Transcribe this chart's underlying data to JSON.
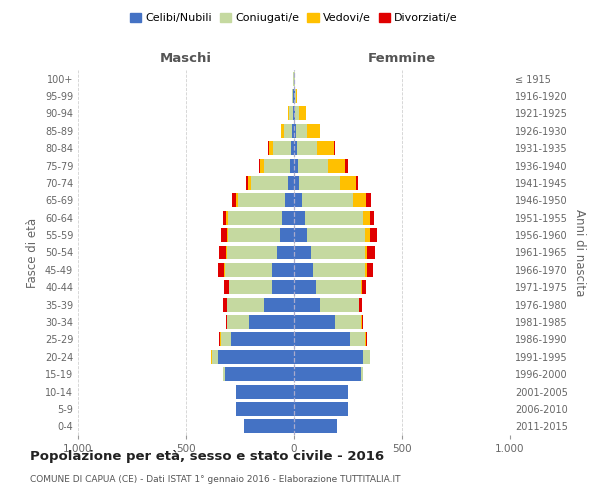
{
  "age_groups": [
    "0-4",
    "5-9",
    "10-14",
    "15-19",
    "20-24",
    "25-29",
    "30-34",
    "35-39",
    "40-44",
    "45-49",
    "50-54",
    "55-59",
    "60-64",
    "65-69",
    "70-74",
    "75-79",
    "80-84",
    "85-89",
    "90-94",
    "95-99",
    "100+"
  ],
  "birth_years": [
    "2011-2015",
    "2006-2010",
    "2001-2005",
    "1996-2000",
    "1991-1995",
    "1986-1990",
    "1981-1985",
    "1976-1980",
    "1971-1975",
    "1966-1970",
    "1961-1965",
    "1956-1960",
    "1951-1955",
    "1946-1950",
    "1941-1945",
    "1936-1940",
    "1931-1935",
    "1926-1930",
    "1921-1925",
    "1916-1920",
    "≤ 1915"
  ],
  "maschi": {
    "celibi": [
      230,
      270,
      270,
      320,
      350,
      290,
      210,
      140,
      100,
      100,
      80,
      65,
      55,
      40,
      30,
      18,
      15,
      8,
      5,
      3,
      2
    ],
    "coniugati": [
      0,
      0,
      0,
      10,
      30,
      50,
      100,
      170,
      200,
      220,
      230,
      240,
      250,
      220,
      170,
      120,
      80,
      40,
      18,
      4,
      2
    ],
    "vedovi": [
      0,
      0,
      0,
      0,
      2,
      2,
      2,
      2,
      2,
      2,
      3,
      5,
      8,
      10,
      12,
      18,
      20,
      12,
      5,
      2,
      0
    ],
    "divorziati": [
      0,
      0,
      0,
      0,
      2,
      5,
      5,
      15,
      20,
      30,
      35,
      30,
      15,
      15,
      10,
      5,
      5,
      0,
      0,
      0,
      0
    ]
  },
  "femmine": {
    "nubili": [
      200,
      250,
      250,
      310,
      320,
      260,
      190,
      120,
      100,
      90,
      80,
      60,
      50,
      35,
      25,
      18,
      15,
      10,
      5,
      3,
      2
    ],
    "coniugate": [
      0,
      0,
      0,
      10,
      30,
      70,
      120,
      180,
      210,
      240,
      250,
      270,
      270,
      240,
      190,
      140,
      90,
      50,
      20,
      4,
      2
    ],
    "vedove": [
      0,
      0,
      0,
      0,
      2,
      3,
      3,
      3,
      5,
      8,
      10,
      20,
      30,
      60,
      70,
      80,
      80,
      60,
      30,
      5,
      2
    ],
    "divorziate": [
      0,
      0,
      0,
      0,
      2,
      3,
      5,
      10,
      20,
      30,
      35,
      35,
      20,
      20,
      10,
      10,
      5,
      0,
      0,
      0,
      0
    ]
  },
  "colors": {
    "celibi": "#4472c4",
    "coniugati": "#c5d9a0",
    "vedovi": "#ffc000",
    "divorziati": "#e00000"
  },
  "xlim": 1000,
  "title": "Popolazione per età, sesso e stato civile - 2016",
  "subtitle": "COMUNE DI CAPUA (CE) - Dati ISTAT 1° gennaio 2016 - Elaborazione TUTTITALIA.IT",
  "ylabel_left": "Fasce di età",
  "ylabel_right": "Anni di nascita",
  "xlabel_left": "Maschi",
  "xlabel_right": "Femmine",
  "legend_labels": [
    "Celibi/Nubili",
    "Coniugati/e",
    "Vedovi/e",
    "Divorziati/e"
  ],
  "background_color": "#ffffff",
  "grid_color": "#cccccc"
}
